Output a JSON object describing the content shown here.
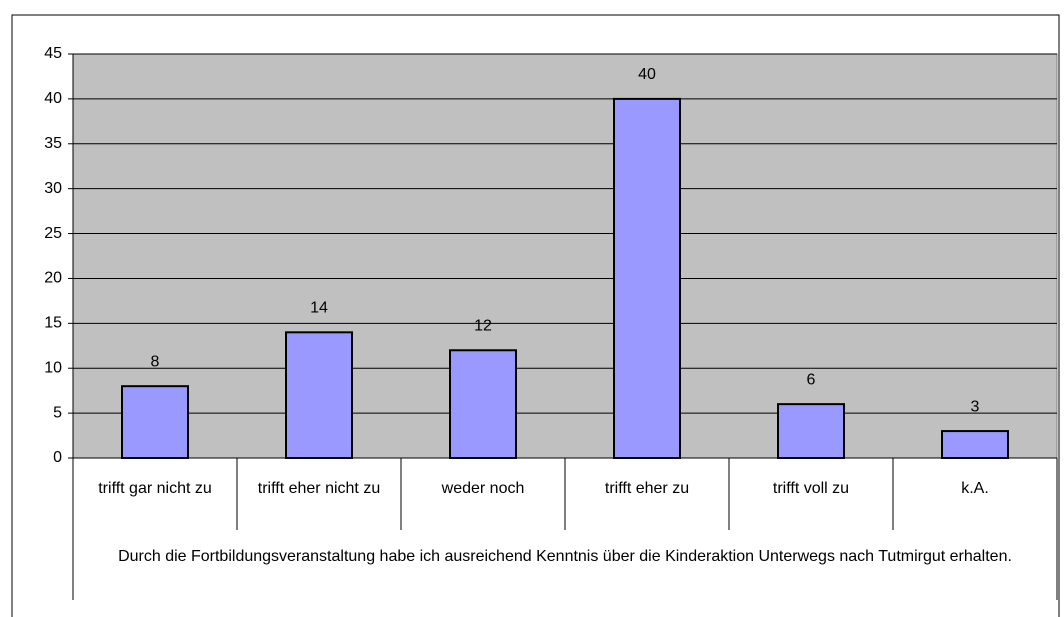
{
  "chart_data": {
    "type": "bar",
    "categories": [
      "trifft gar nicht zu",
      "trifft eher nicht zu",
      "weder noch",
      "trifft eher zu",
      "trifft voll zu",
      "k.A."
    ],
    "values": [
      8,
      14,
      12,
      40,
      6,
      3
    ],
    "color": "#9999ff",
    "x_label": "Durch die Fortbildungsveranstaltung habe ich ausreichend Kenntnis über die Kinderaktion Unterwegs nach Tutmirgut erhalten.",
    "ylim": [
      0,
      45
    ],
    "yticks": [
      0,
      5,
      10,
      15,
      20,
      25,
      30,
      35,
      40,
      45
    ],
    "grid": true
  }
}
